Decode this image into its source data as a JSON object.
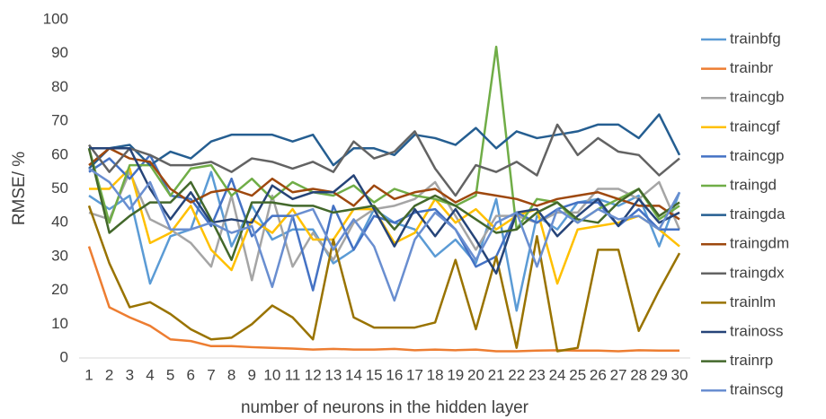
{
  "chart_data": {
    "type": "line",
    "x_label": "number of neurons in the hidden layer",
    "y_label": "RMSE/ %",
    "categories": [
      "1",
      "2",
      "3",
      "4",
      "5",
      "6",
      "7",
      "8",
      "9",
      "10",
      "11",
      "12",
      "13",
      "14",
      "15",
      "16",
      "17",
      "18",
      "19",
      "20",
      "21",
      "22",
      "23",
      "24",
      "25",
      "26",
      "27",
      "28",
      "29",
      "30"
    ],
    "ylim": [
      0,
      100
    ],
    "yticks": [
      0,
      10,
      20,
      30,
      40,
      50,
      60,
      70,
      80,
      90,
      100
    ],
    "grid": false,
    "legend": "right",
    "series": [
      {
        "name": "trainbfg",
        "color": "#5b9bd5",
        "values": [
          48,
          44,
          48,
          22,
          36,
          38,
          55,
          33,
          45,
          35,
          38,
          38,
          28,
          32,
          44,
          40,
          38,
          30,
          35,
          28,
          47,
          14,
          42,
          38,
          46,
          47,
          45,
          48,
          33,
          49
        ]
      },
      {
        "name": "trainbr",
        "color": "#ed7d31",
        "values": [
          33,
          15,
          12,
          9.5,
          5.5,
          5,
          3.5,
          3.5,
          3.2,
          3,
          2.8,
          2.5,
          2.7,
          2.5,
          2.5,
          2.7,
          2.3,
          2.5,
          2.3,
          2.5,
          2,
          2,
          2.2,
          2.3,
          2.2,
          2.2,
          2,
          2.3,
          2.2,
          2.2
        ]
      },
      {
        "name": "traincgb",
        "color": "#a5a5a5",
        "values": [
          43,
          41,
          55,
          41,
          38,
          34,
          27,
          48,
          23,
          48,
          27,
          37,
          29,
          40,
          44,
          45,
          47,
          52,
          42,
          32,
          42,
          42,
          40,
          43,
          43,
          50,
          50,
          47,
          52,
          38
        ]
      },
      {
        "name": "traincgf",
        "color": "#ffc000",
        "values": [
          50,
          50,
          56,
          34,
          37,
          45,
          32,
          26,
          41,
          37,
          44,
          35,
          35,
          44,
          44,
          34,
          37,
          47,
          40,
          44,
          38,
          42,
          44,
          22,
          38,
          39,
          40,
          42,
          38,
          33
        ]
      },
      {
        "name": "traincgp",
        "color": "#4472c4",
        "values": [
          55,
          59,
          53,
          60,
          48,
          47,
          39,
          53,
          36,
          42,
          42,
          20,
          45,
          32,
          42,
          40,
          43,
          44,
          38,
          27,
          30,
          43,
          40,
          44,
          46,
          46,
          39,
          44,
          38,
          38
        ]
      },
      {
        "name": "traingd",
        "color": "#70ad47",
        "values": [
          62,
          40,
          57,
          57,
          48,
          56,
          57,
          48,
          53,
          47,
          52,
          49,
          48,
          51,
          46,
          50,
          48,
          47,
          45,
          48,
          92,
          38,
          47,
          46,
          40,
          44,
          47,
          50,
          41,
          45
        ]
      },
      {
        "name": "traingda",
        "color": "#255e91",
        "values": [
          56,
          62,
          63,
          57,
          61,
          59,
          64,
          66,
          66,
          66,
          64,
          66,
          57,
          62,
          62,
          60,
          66,
          65,
          63,
          68,
          62,
          67,
          65,
          66,
          67,
          69,
          69,
          65,
          72,
          60
        ]
      },
      {
        "name": "traingdm",
        "color": "#9e480e",
        "values": [
          57,
          62,
          59,
          58,
          50,
          46,
          49,
          50,
          48,
          53,
          49,
          50,
          49,
          45,
          51,
          47,
          49,
          50,
          46,
          49,
          48,
          47,
          45,
          47,
          48,
          49,
          47,
          45,
          45,
          41
        ]
      },
      {
        "name": "traingdx",
        "color": "#636363",
        "values": [
          63,
          55,
          62,
          60,
          57,
          57,
          58,
          55,
          59,
          58,
          56,
          58,
          55,
          64,
          59,
          61,
          67,
          56,
          48,
          57,
          55,
          58,
          54,
          69,
          60,
          65,
          61,
          60,
          54,
          59
        ]
      },
      {
        "name": "trainlm",
        "color": "#997300",
        "values": [
          45,
          28,
          15,
          16.5,
          13,
          8.5,
          5.5,
          6,
          10,
          15.5,
          12,
          5.5,
          35,
          12,
          9,
          9,
          9,
          10.5,
          29,
          8.5,
          30,
          3,
          36,
          2,
          3,
          32,
          32,
          8,
          20,
          31
        ]
      },
      {
        "name": "trainoss",
        "color": "#264478",
        "values": [
          62,
          62,
          62,
          50,
          41,
          49,
          40,
          41,
          40,
          51,
          47,
          49,
          49,
          54,
          44,
          33,
          44,
          36,
          44,
          35,
          25,
          43,
          44,
          36,
          42,
          47,
          39,
          47,
          40,
          43
        ]
      },
      {
        "name": "trainrp",
        "color": "#43682b",
        "values": [
          62,
          37,
          42,
          46,
          46,
          52,
          41,
          29,
          46,
          46,
          45,
          45,
          43,
          44,
          45,
          38,
          45,
          48,
          45,
          41,
          37,
          38,
          43,
          46,
          41,
          40,
          46,
          50,
          42,
          46
        ]
      },
      {
        "name": "trainscg",
        "color": "#698ed0",
        "values": [
          56,
          52,
          44,
          52,
          38,
          38,
          40,
          37,
          39,
          21,
          42,
          44,
          32,
          41,
          33,
          17,
          35,
          43,
          38,
          29,
          40,
          43,
          27,
          44,
          40,
          44,
          41,
          42,
          38,
          49
        ]
      }
    ]
  }
}
